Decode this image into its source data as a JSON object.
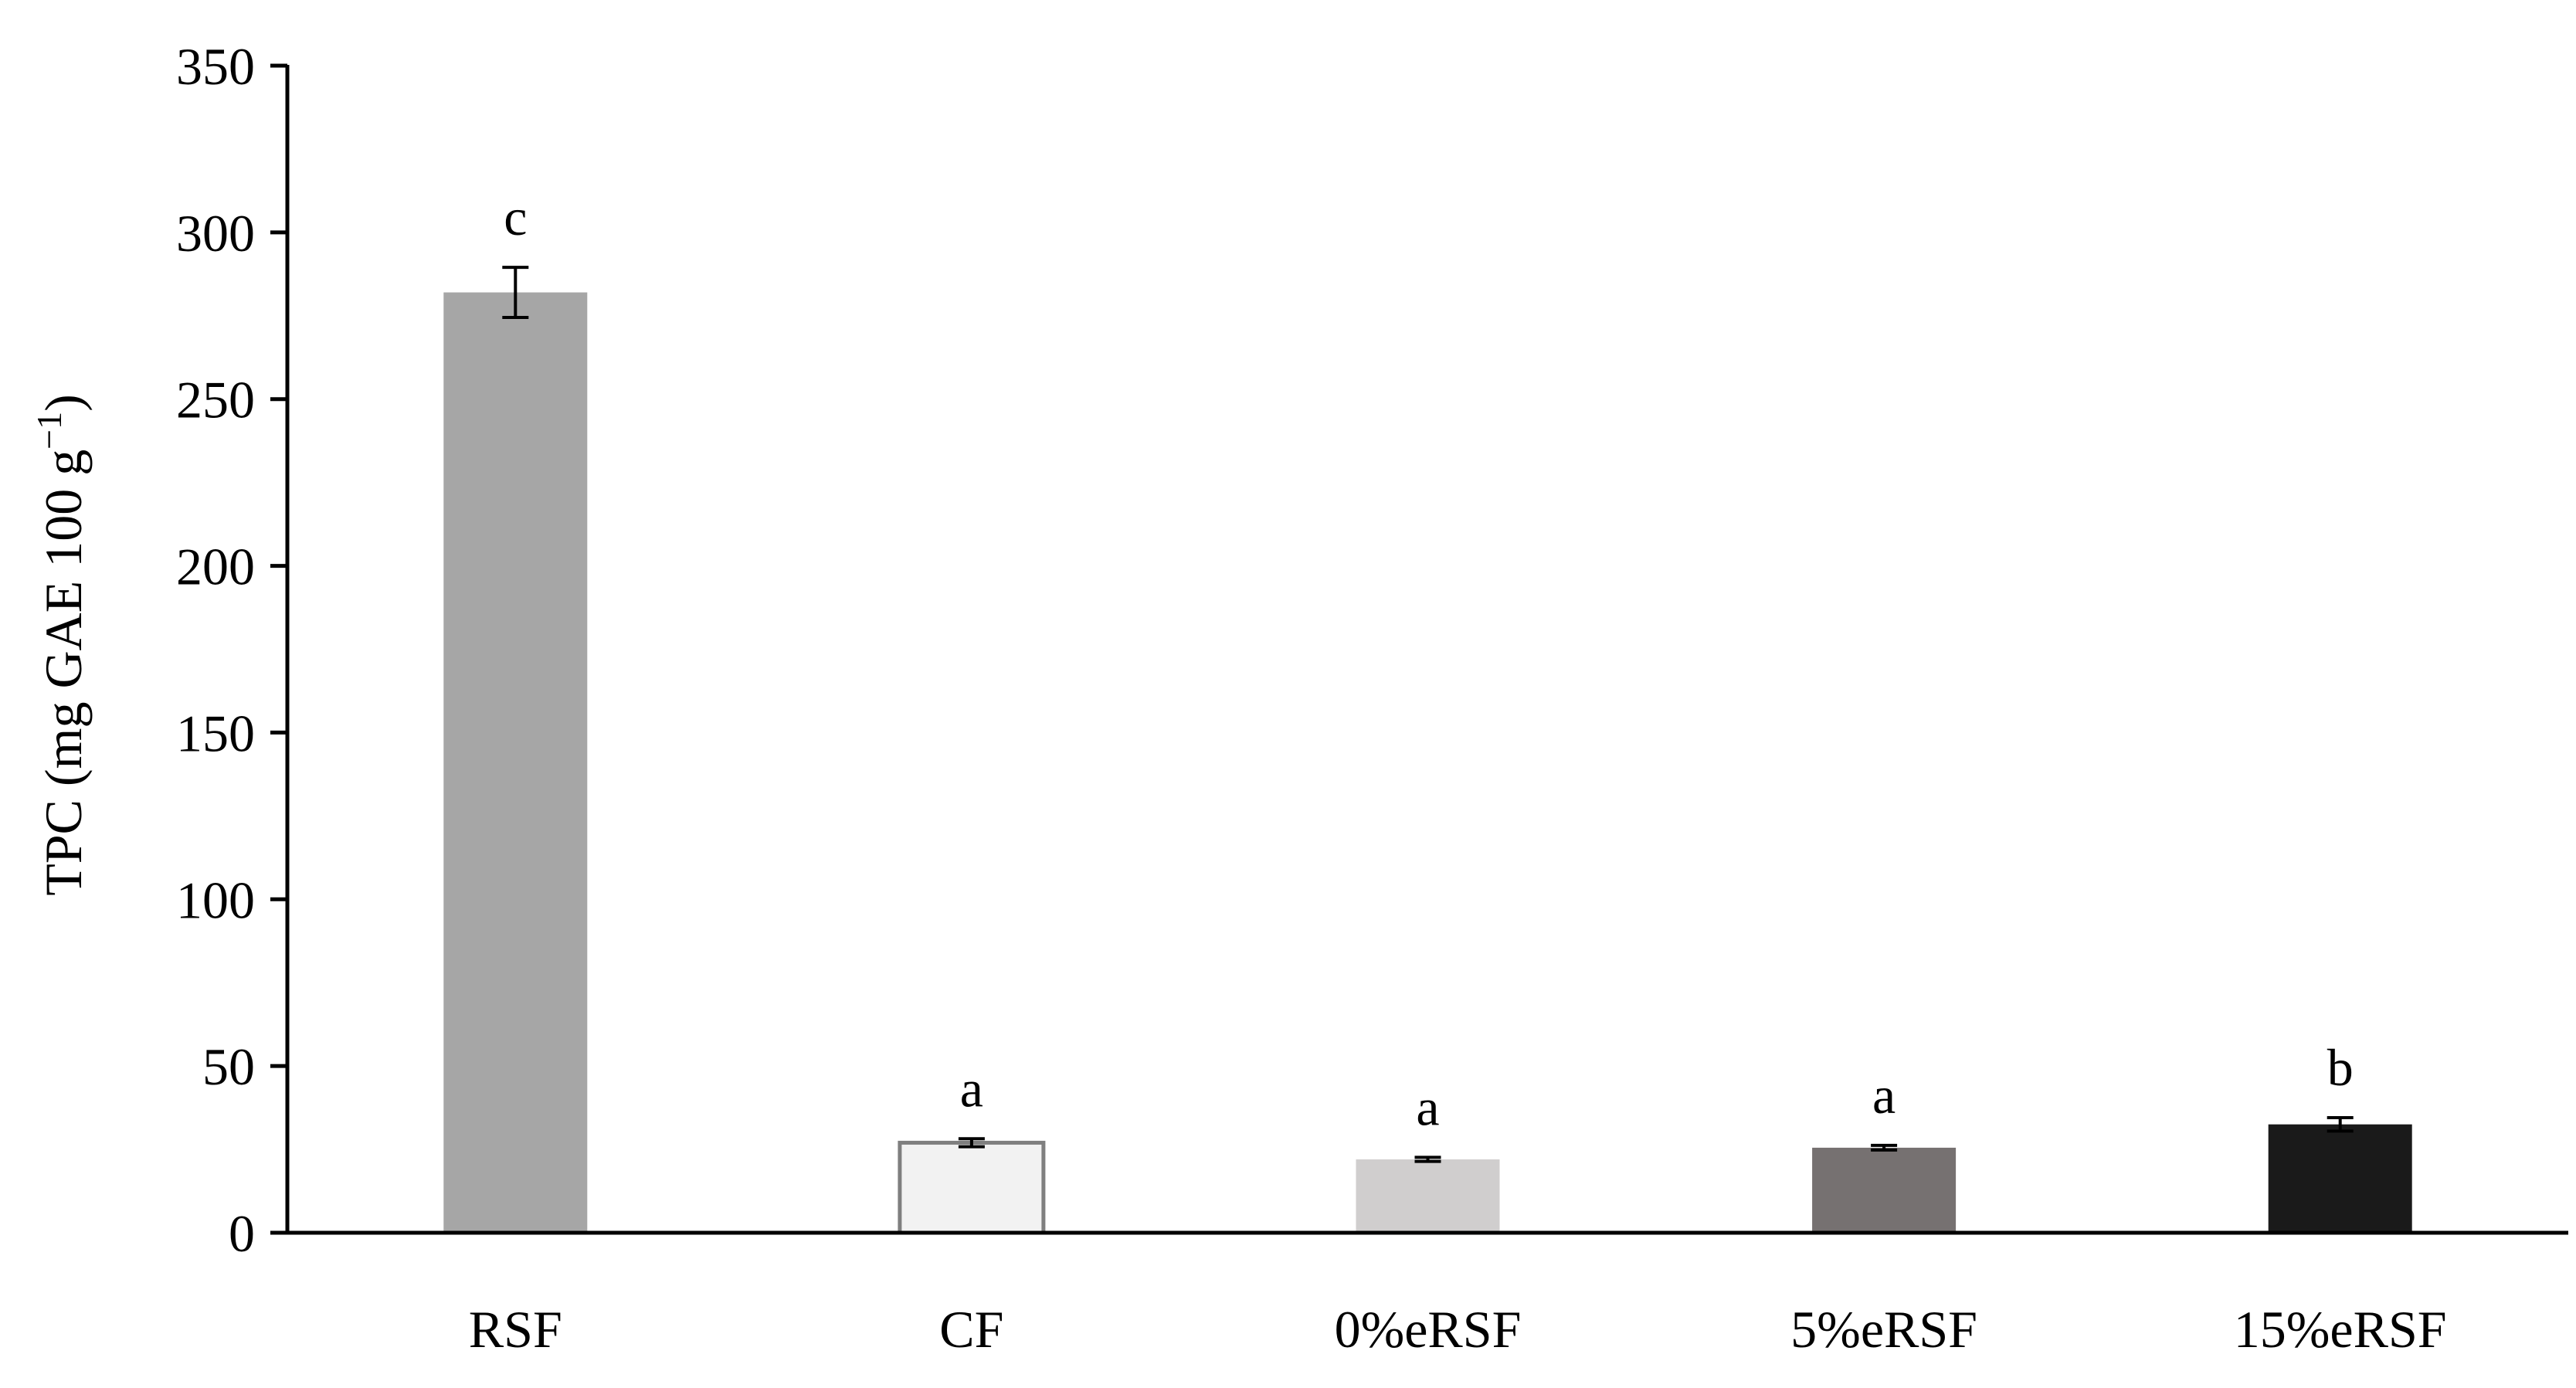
{
  "chart_data": {
    "type": "bar",
    "categories": [
      "RSF",
      "CF",
      "0%eRSF",
      "5%eRSF",
      "15%eRSF"
    ],
    "values": [
      282,
      27,
      22,
      25.5,
      32.5
    ],
    "errors": [
      7.5,
      1.2,
      0.6,
      0.7,
      2.0
    ],
    "significance_letters": [
      "c",
      "a",
      "a",
      "a",
      "b"
    ],
    "bar_colors": [
      "#a6a6a6",
      "#f2f2f2",
      "#d0cece",
      "#767171",
      "#1a1a1a"
    ],
    "bar_outline": [
      null,
      "#7f7f7f",
      null,
      null,
      null
    ],
    "ylabel": {
      "main": "TPC (mg GAE 100 g",
      "superscript": "−1",
      "close": ")"
    },
    "ylim": [
      0,
      350
    ],
    "yticks": [
      0,
      50,
      100,
      150,
      200,
      250,
      300,
      350
    ],
    "ytick_labels": [
      "0",
      "50",
      "100",
      "150",
      "200",
      "250",
      "300",
      "350"
    ],
    "grid": false,
    "legend": "none"
  }
}
